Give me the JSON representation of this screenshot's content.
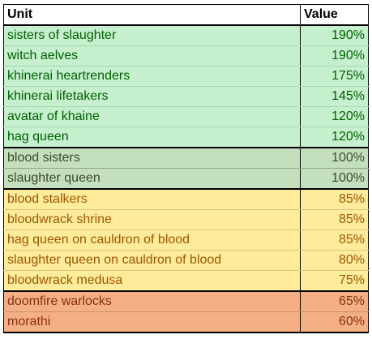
{
  "table": {
    "headers": {
      "unit": "Unit",
      "value": "Value"
    },
    "tier_colors": {
      "high": "#c6efce",
      "mid": "#c4dfbe",
      "low": "#ffeb9c",
      "bad": "#f4b084"
    },
    "rows": [
      {
        "unit": "sisters of slaughter",
        "value": "190%",
        "tier": "high"
      },
      {
        "unit": "witch aelves",
        "value": "190%",
        "tier": "high"
      },
      {
        "unit": "khinerai heartrenders",
        "value": "175%",
        "tier": "high"
      },
      {
        "unit": "khinerai lifetakers",
        "value": "145%",
        "tier": "high"
      },
      {
        "unit": "avatar of khaine",
        "value": "120%",
        "tier": "high"
      },
      {
        "unit": "hag queen",
        "value": "120%",
        "tier": "high"
      },
      {
        "unit": "blood sisters",
        "value": "100%",
        "tier": "mid"
      },
      {
        "unit": "slaughter queen",
        "value": "100%",
        "tier": "mid"
      },
      {
        "unit": "blood stalkers",
        "value": "85%",
        "tier": "low"
      },
      {
        "unit": "bloodwrack shrine",
        "value": "85%",
        "tier": "low"
      },
      {
        "unit": "hag queen on cauldron of blood",
        "value": "85%",
        "tier": "low"
      },
      {
        "unit": "slaughter queen on cauldron of blood",
        "value": "80%",
        "tier": "low"
      },
      {
        "unit": "bloodwrack medusa",
        "value": "75%",
        "tier": "low"
      },
      {
        "unit": "doomfire warlocks",
        "value": "65%",
        "tier": "bad"
      },
      {
        "unit": "morathi",
        "value": "60%",
        "tier": "bad"
      }
    ]
  }
}
